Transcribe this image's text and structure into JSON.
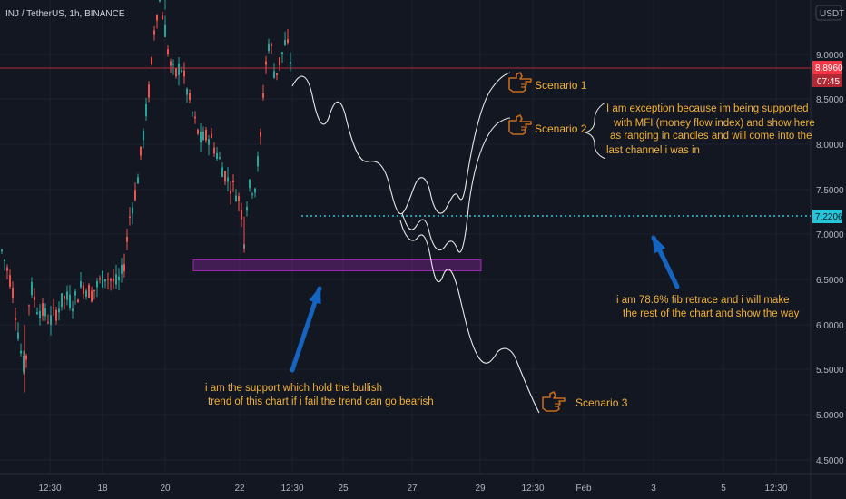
{
  "header": {
    "symbol_title": "INJ / TetherUS, 1h, BINANCE",
    "currency": "USDT"
  },
  "chart_data": {
    "type": "candlestick",
    "symbol": "INJ / TetherUS",
    "interval": "1h",
    "exchange": "BINANCE",
    "price_axis": {
      "ticks": [
        "9.0000",
        "8.5000",
        "8.0000",
        "7.5000",
        "7.0000",
        "6.5000",
        "6.0000",
        "5.5000",
        "5.0000",
        "4.5000"
      ],
      "range": [
        4.35,
        9.75
      ]
    },
    "time_axis": {
      "ticks": [
        "12:30",
        "18",
        "20",
        "22",
        "12:30",
        "25",
        "27",
        "29",
        "12:30",
        "Feb",
        "3",
        "5",
        "12:30"
      ]
    },
    "current_price": {
      "value": "8.8960",
      "countdown": "07:45",
      "color": "#f23645"
    },
    "fib_level": {
      "value": "7.2206",
      "color": "#26c6da"
    },
    "support_zone": {
      "low": 6.64,
      "high": 6.76,
      "color": "#9c27b0"
    },
    "candle_colors": {
      "up": "#26a69a",
      "down": "#ef5350"
    },
    "candles_approx": [
      [
        "17 09:00",
        6.8,
        6.95,
        6.55,
        6.6
      ],
      [
        "17 13:00",
        6.6,
        6.7,
        6.4,
        6.45
      ],
      [
        "17 17:00",
        6.45,
        6.5,
        6.2,
        6.3
      ],
      [
        "17 21:00",
        6.3,
        6.35,
        5.95,
        6.0
      ],
      [
        "18 01:00",
        6.0,
        6.05,
        5.25,
        5.6
      ],
      [
        "18 05:00",
        5.6,
        6.4,
        5.55,
        6.35
      ],
      [
        "18 09:00",
        6.35,
        6.6,
        6.25,
        6.5
      ],
      [
        "18 13:00",
        6.5,
        6.55,
        6.15,
        6.2
      ],
      [
        "18 17:00",
        6.2,
        6.45,
        6.1,
        6.4
      ],
      [
        "18 21:00",
        6.4,
        6.5,
        6.1,
        6.15
      ],
      [
        "19 01:00",
        6.15,
        6.3,
        5.95,
        6.25
      ],
      [
        "19 05:00",
        6.25,
        6.45,
        6.2,
        6.4
      ],
      [
        "19 09:00",
        6.4,
        6.5,
        6.25,
        6.3
      ],
      [
        "19 13:00",
        6.3,
        6.45,
        6.2,
        6.35
      ],
      [
        "19 17:00",
        6.35,
        6.6,
        6.3,
        6.55
      ],
      [
        "19 21:00",
        6.55,
        7.1,
        6.5,
        7.05
      ],
      [
        "20 01:00",
        7.05,
        7.6,
        7.0,
        7.5
      ],
      [
        "20 05:00",
        7.5,
        8.3,
        7.4,
        8.2
      ],
      [
        "20 09:00",
        8.2,
        8.8,
        8.0,
        8.7
      ],
      [
        "20 13:00",
        8.7,
        9.7,
        8.6,
        9.3
      ],
      [
        "20 17:00",
        9.3,
        9.5,
        8.8,
        9.0
      ],
      [
        "20 21:00",
        9.0,
        9.2,
        8.7,
        8.8
      ],
      [
        "21 01:00",
        8.8,
        9.1,
        8.6,
        9.0
      ],
      [
        "21 05:00",
        9.0,
        9.05,
        8.5,
        8.6
      ],
      [
        "21 09:00",
        8.6,
        8.7,
        8.3,
        8.4
      ],
      [
        "21 13:00",
        8.4,
        8.5,
        8.1,
        8.2
      ],
      [
        "21 17:00",
        8.2,
        8.3,
        7.8,
        7.9
      ],
      [
        "21 21:00",
        7.9,
        8.0,
        7.5,
        7.6
      ],
      [
        "22 01:00",
        7.6,
        7.7,
        6.8,
        7.3
      ],
      [
        "22 05:00",
        7.3,
        7.9,
        7.2,
        7.8
      ],
      [
        "22 09:00",
        7.8,
        8.6,
        7.75,
        8.5
      ],
      [
        "22 13:00",
        8.5,
        9.2,
        8.4,
        9.1
      ],
      [
        "22 17:00",
        9.1,
        9.2,
        8.8,
        8.95
      ],
      [
        "22 21:00",
        8.95,
        9.1,
        8.7,
        8.9
      ]
    ]
  },
  "annotations": {
    "scenario_1": "Scenario 1",
    "scenario_2": "Scenario 2",
    "scenario_3": "Scenario 3",
    "exception_lines": [
      "I am exception because im being supported",
      "with MFI (money flow index) and show here",
      "as ranging in candles and will come into the",
      "last channel i was in"
    ],
    "fib_lines": [
      "i am 78.6% fib retrace and i will make",
      "the rest of the chart and show the way"
    ],
    "support_lines": [
      "i am the support which hold the bullish",
      "trend of this chart if i fail the trend can go bearish"
    ],
    "text_color": "#f2b134",
    "arrow_color": "#1565c0",
    "icon": "pointing-hand-icon"
  }
}
